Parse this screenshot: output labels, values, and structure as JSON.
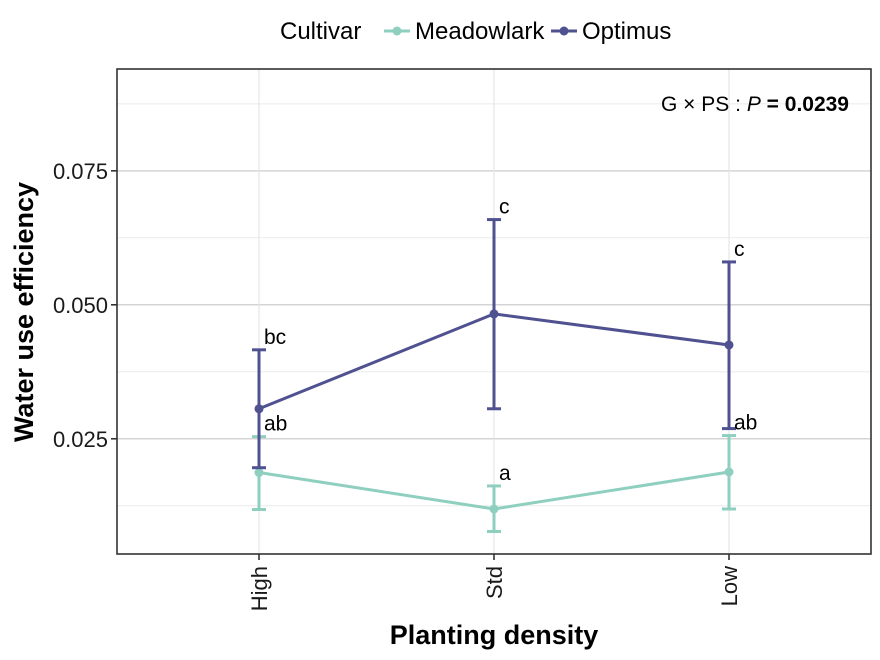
{
  "chart_data": {
    "type": "line",
    "title": "",
    "xlabel": "Planting density",
    "ylabel": "Water use efficiency",
    "categories": [
      "High",
      "Std",
      "Low"
    ],
    "ylim": [
      0.0035,
      0.094
    ],
    "yticks": [
      0.025,
      0.05,
      0.075
    ],
    "ytick_labels": [
      "0.025",
      "0.050",
      "0.075"
    ],
    "grid": true,
    "legend": {
      "title": "Cultivar",
      "placement": "top",
      "entries": [
        "Meadowlark",
        "Optimus"
      ]
    },
    "annotation": {
      "prefix": "G × PS : ",
      "p_label": "P",
      "equals_value": " = 0.0239"
    },
    "series": [
      {
        "name": "Meadowlark",
        "color": "#8ecfc0",
        "values": [
          0.0187,
          0.0119,
          0.0188
        ],
        "err_low": [
          0.0118,
          0.0077,
          0.0119
        ],
        "err_high": [
          0.0254,
          0.0162,
          0.0256
        ],
        "letters": [
          "ab",
          "a",
          "ab"
        ]
      },
      {
        "name": "Optimus",
        "color": "#4f5190",
        "values": [
          0.0306,
          0.0483,
          0.0425
        ],
        "err_low": [
          0.0196,
          0.0306,
          0.0269
        ],
        "err_high": [
          0.0416,
          0.0659,
          0.058
        ],
        "letters": [
          "bc",
          "c",
          "c"
        ]
      }
    ]
  }
}
